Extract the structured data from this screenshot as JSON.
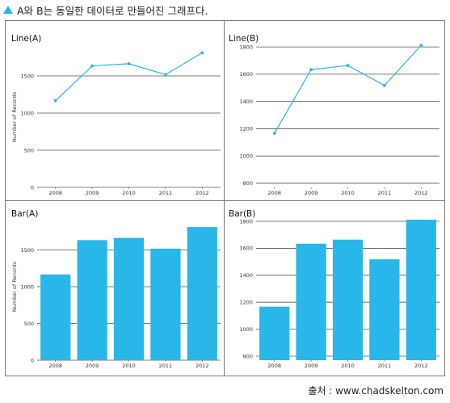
{
  "heading": "A와 B는 동일한 데이터로 만들어진 그래프다.",
  "source": "출처 : www.chadskelton.com",
  "colors": {
    "accent": "#29b6e8",
    "grid": "#555555"
  },
  "chart_data": [
    {
      "type": "line",
      "title": "Line(A)",
      "ylabel": "Number of Records",
      "categories": [
        "2008",
        "2009",
        "2010",
        "2011",
        "2012"
      ],
      "values": [
        1167,
        1634,
        1664,
        1518,
        1812
      ],
      "ylim": [
        0,
        2000
      ],
      "yticks": [
        0,
        500,
        1000,
        1500
      ],
      "grid": true
    },
    {
      "type": "line",
      "title": "Line(B)",
      "ylabel": "",
      "categories": [
        "2008",
        "2009",
        "2010",
        "2011",
        "2012"
      ],
      "values": [
        1167,
        1634,
        1664,
        1518,
        1812
      ],
      "ylim": [
        770,
        1860
      ],
      "yticks": [
        800,
        1000,
        1200,
        1400,
        1600,
        1800
      ],
      "grid": true
    },
    {
      "type": "bar",
      "title": "Bar(A)",
      "ylabel": "Number of Records",
      "categories": [
        "2008",
        "2009",
        "2010",
        "2011",
        "2012"
      ],
      "values": [
        1167,
        1634,
        1664,
        1518,
        1812
      ],
      "ylim": [
        0,
        2000
      ],
      "yticks": [
        0,
        500,
        1000,
        1500
      ],
      "grid": true
    },
    {
      "type": "bar",
      "title": "Bar(B)",
      "ylabel": "",
      "categories": [
        "2008",
        "2009",
        "2010",
        "2011",
        "2012"
      ],
      "values": [
        1167,
        1634,
        1664,
        1518,
        1812
      ],
      "ylim": [
        770,
        1860
      ],
      "yticks": [
        800,
        1000,
        1200,
        1400,
        1600,
        1800
      ],
      "grid": true
    }
  ]
}
